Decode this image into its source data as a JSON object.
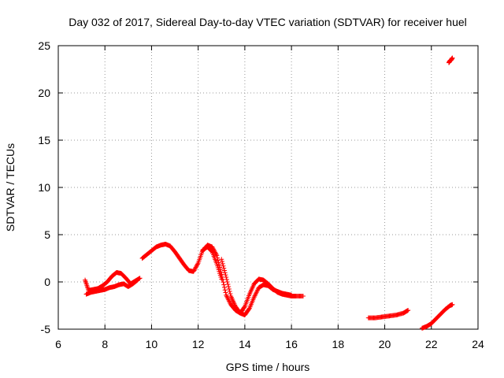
{
  "chart_data": {
    "type": "scatter",
    "title": "Day 032 of 2017, Sidereal Day-to-day VTEC variation (SDTVAR) for receiver huel",
    "xlabel": "GPS time / hours",
    "ylabel": "SDTVAR / TECUs",
    "xlim": [
      6,
      24
    ],
    "ylim": [
      -5,
      25
    ],
    "x_ticks": [
      "6",
      "8",
      "10",
      "12",
      "14",
      "16",
      "18",
      "20",
      "22",
      "24"
    ],
    "y_ticks": [
      "-5",
      "0",
      "5",
      "10",
      "15",
      "20",
      "25"
    ],
    "grid": true,
    "marker": "+",
    "color": "#ff0000",
    "series": [
      {
        "name": "arc-a",
        "x": [
          7.15,
          7.3,
          7.5,
          7.7,
          7.9,
          8.1,
          8.3,
          8.5,
          8.7,
          8.9,
          9.1,
          9.3,
          9.5
        ],
        "y": [
          0.2,
          -0.9,
          -0.8,
          -0.7,
          -0.4,
          0.0,
          0.6,
          1.0,
          0.9,
          0.4,
          -0.2,
          0.1,
          0.4
        ]
      },
      {
        "name": "arc-b",
        "x": [
          7.2,
          7.4,
          7.6,
          7.8,
          8.0,
          8.2,
          8.4,
          8.6,
          8.8,
          9.0,
          9.2,
          9.4
        ],
        "y": [
          -1.3,
          -1.1,
          -1.0,
          -0.9,
          -0.8,
          -0.6,
          -0.5,
          -0.3,
          -0.2,
          -0.5,
          -0.2,
          0.2
        ]
      },
      {
        "name": "arc-c",
        "x": [
          9.6,
          9.8,
          10.0,
          10.2,
          10.4,
          10.6,
          10.8,
          11.0,
          11.2,
          11.4,
          11.6,
          11.8,
          12.0,
          12.2,
          12.4,
          12.6,
          12.8,
          13.0
        ],
        "y": [
          2.5,
          2.9,
          3.3,
          3.7,
          3.9,
          4.0,
          3.8,
          3.2,
          2.5,
          1.8,
          1.2,
          1.1,
          2.0,
          3.4,
          3.7,
          3.2,
          1.9,
          0.3
        ]
      },
      {
        "name": "arc-d",
        "x": [
          12.2,
          12.4,
          12.6,
          12.8,
          13.0,
          13.2,
          13.4,
          13.6,
          13.8,
          14.0,
          14.2,
          14.4,
          14.6,
          14.8,
          15.0,
          15.2,
          15.4,
          15.6,
          15.8,
          16.0,
          16.2,
          16.5
        ],
        "y": [
          3.3,
          3.9,
          3.7,
          2.8,
          0.8,
          -1.4,
          -2.4,
          -3.0,
          -3.3,
          -2.6,
          -1.3,
          -0.2,
          0.3,
          0.2,
          -0.2,
          -0.7,
          -1.1,
          -1.3,
          -1.4,
          -1.5,
          -1.5,
          -1.5
        ]
      },
      {
        "name": "arc-e",
        "x": [
          13.0,
          13.2,
          13.4,
          13.6,
          13.8,
          14.0,
          14.2,
          14.4,
          14.6,
          14.8,
          15.0,
          15.2,
          15.4,
          15.6,
          15.8,
          16.0
        ],
        "y": [
          2.4,
          0.5,
          -1.5,
          -2.6,
          -3.3,
          -3.5,
          -2.8,
          -1.6,
          -0.6,
          -0.3,
          -0.4,
          -0.8,
          -1.0,
          -1.2,
          -1.3,
          -1.4
        ]
      },
      {
        "name": "arc-f",
        "x": [
          19.3,
          19.6,
          19.9,
          20.2,
          20.5,
          20.8,
          21.0
        ],
        "y": [
          -3.8,
          -3.8,
          -3.7,
          -3.6,
          -3.5,
          -3.3,
          -3.0
        ]
      },
      {
        "name": "arc-g",
        "x": [
          21.6,
          21.8,
          22.0,
          22.2,
          22.4,
          22.6,
          22.8,
          22.9
        ],
        "y": [
          -4.9,
          -4.7,
          -4.4,
          -3.9,
          -3.4,
          -2.9,
          -2.5,
          -2.4
        ]
      },
      {
        "name": "arc-h",
        "x": [
          22.75,
          22.8,
          22.85,
          22.9
        ],
        "y": [
          23.2,
          23.4,
          23.5,
          23.7
        ]
      }
    ]
  }
}
